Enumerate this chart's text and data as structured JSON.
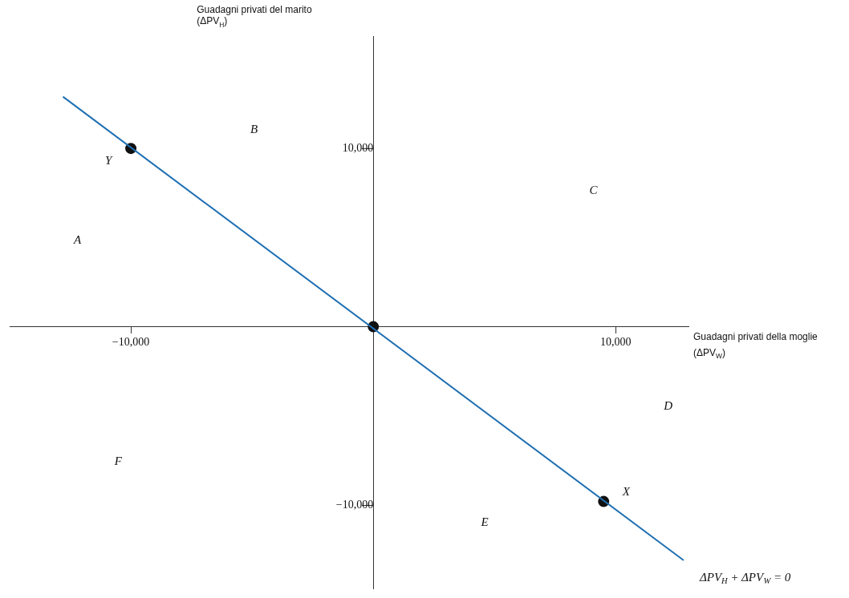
{
  "chart_data": {
    "type": "line",
    "xlabel": "Guadagni privati della moglie (ΔPV$_{W}$)",
    "ylabel": "Guadagni privati del marito (ΔPV$_{H}$)",
    "xlim": [
      -15000,
      13000
    ],
    "ylim": [
      -14700,
      16300
    ],
    "xticks": [
      {
        "value": -10000,
        "label": "−10,000"
      },
      {
        "value": 10000,
        "label": "10,000"
      }
    ],
    "yticks": [
      {
        "value": -10000,
        "label": "−10,000"
      },
      {
        "value": 10000,
        "label": "10,000"
      }
    ],
    "grid": false,
    "legend": false,
    "series": [
      {
        "color": "#1f6fb2",
        "x": [
          -12800,
          12800
        ],
        "values": [
          12900,
          -13100
        ],
        "marker": "none",
        "line_style": "solid"
      },
      {
        "type": "scatter",
        "color": "#111111",
        "x": [
          -10000,
          0,
          9500
        ],
        "values": [
          10000,
          0,
          -9800
        ],
        "marker": "circle"
      }
    ],
    "annotations": [
      "A",
      "B",
      "C",
      "D",
      "E",
      "F",
      {
        "text": "Y",
        "x": -10000,
        "y": 10000
      },
      {
        "text": "X",
        "x": 9500,
        "y": -9800
      },
      {
        "text": "ΔPV$_{H}$ + ΔPV$_{W}$ = 0",
        "x": 12800,
        "y": -13100
      }
    ]
  }
}
